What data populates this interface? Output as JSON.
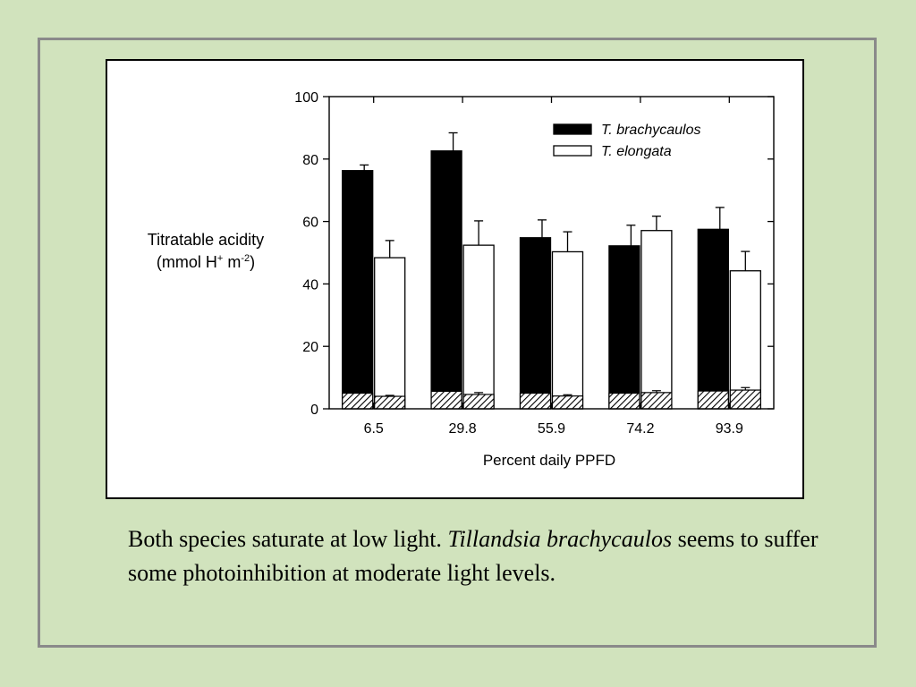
{
  "chart_data": {
    "type": "bar",
    "xlabel": "Percent daily PPFD",
    "ylabel_line1": "Titratable acidity",
    "ylabel_line2": {
      "open": "(mmol H",
      "sup1": "+",
      "mid": " m",
      "sup2": "-2",
      "close": ")"
    },
    "ylim": [
      0,
      100
    ],
    "yticks": [
      "0",
      "20",
      "40",
      "60",
      "80",
      "100"
    ],
    "categories": [
      "6.5",
      "29.8",
      "55.9",
      "74.2",
      "93.9"
    ],
    "legend_position": "top-right",
    "series": [
      {
        "name": "T. brachycaulos",
        "color": "#000000",
        "values": [
          76.3,
          82.6,
          54.8,
          52.2,
          57.5
        ],
        "errors": [
          1.8,
          5.8,
          5.7,
          6.6,
          7.0
        ],
        "baseline_values": [
          5.0,
          5.6,
          5.0,
          5.0,
          5.7
        ],
        "baseline_errors": [
          0.4,
          0.6,
          0.5,
          0.5,
          0.7
        ]
      },
      {
        "name": "T. elongata",
        "color": "#ffffff",
        "values": [
          48.4,
          52.4,
          50.3,
          57.1,
          44.2
        ],
        "errors": [
          5.5,
          7.8,
          6.4,
          4.6,
          6.2
        ],
        "baseline_values": [
          4.0,
          4.6,
          4.1,
          5.2,
          6.0
        ],
        "baseline_errors": [
          0.3,
          0.6,
          0.4,
          0.6,
          0.8
        ]
      }
    ]
  },
  "caption": {
    "part1": "Both species saturate at low light.  ",
    "italic1": "Tillandsia",
    "italic2": "brachycaulos",
    "part2": " seems to suffer some photoinhibition at moderate light levels."
  }
}
